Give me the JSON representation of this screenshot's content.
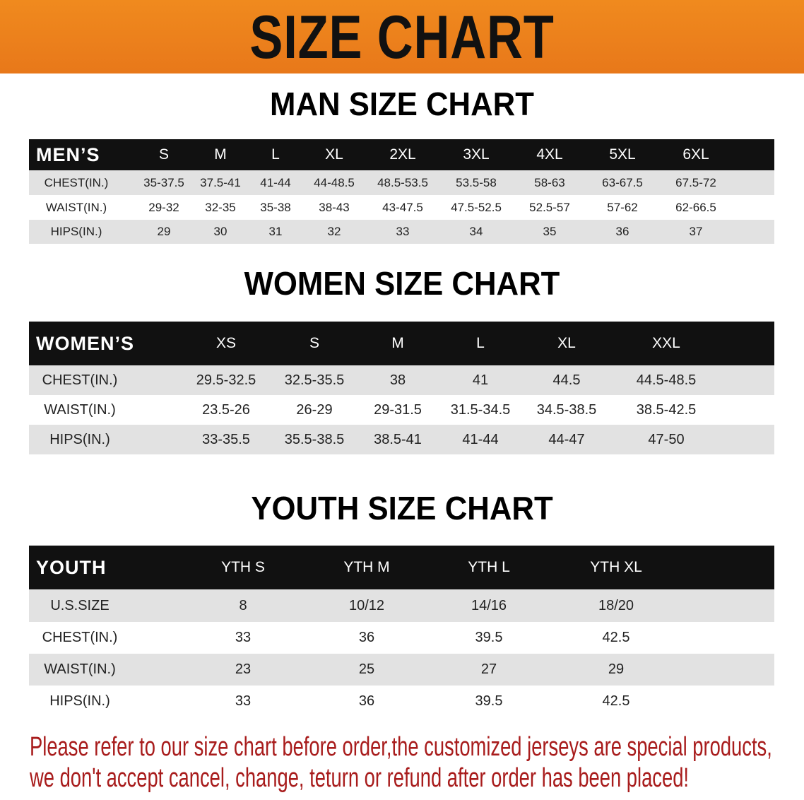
{
  "banner": {
    "title": "SIZE CHART",
    "color": "#ec811c"
  },
  "men": {
    "title": "MAN SIZE CHART",
    "header": [
      "MEN’S",
      "S",
      "M",
      "L",
      "XL",
      "2XL",
      "3XL",
      "4XL",
      "5XL",
      "6XL"
    ],
    "rows": [
      [
        "CHEST(IN.)",
        "35-37.5",
        "37.5-41",
        "41-44",
        "44-48.5",
        "48.5-53.5",
        "53.5-58",
        "58-63",
        "63-67.5",
        "67.5-72"
      ],
      [
        "WAIST(IN.)",
        "29-32",
        "32-35",
        "35-38",
        "38-43",
        "43-47.5",
        "47.5-52.5",
        "52.5-57",
        "57-62",
        "62-66.5"
      ],
      [
        "HIPS(IN.)",
        "29",
        "30",
        "31",
        "32",
        "33",
        "34",
        "35",
        "36",
        "37"
      ]
    ]
  },
  "women": {
    "title": "WOMEN SIZE CHART",
    "header": [
      "WOMEN’S",
      "XS",
      "S",
      "M",
      "L",
      "XL",
      "XXL"
    ],
    "rows": [
      [
        "CHEST(IN.)",
        "29.5-32.5",
        "32.5-35.5",
        "38",
        "41",
        "44.5",
        "44.5-48.5"
      ],
      [
        "WAIST(IN.)",
        "23.5-26",
        "26-29",
        "29-31.5",
        "31.5-34.5",
        "34.5-38.5",
        "38.5-42.5"
      ],
      [
        "HIPS(IN.)",
        "33-35.5",
        "35.5-38.5",
        "38.5-41",
        "41-44",
        "44-47",
        "47-50"
      ]
    ]
  },
  "youth": {
    "title": "YOUTH SIZE CHART",
    "header": [
      "YOUTH",
      "YTH S",
      "YTH M",
      "YTH L",
      "YTH XL"
    ],
    "rows": [
      [
        "U.S.SIZE",
        "8",
        "10/12",
        "14/16",
        "18/20"
      ],
      [
        "CHEST(IN.)",
        "33",
        "36",
        "39.5",
        "42.5"
      ],
      [
        "WAIST(IN.)",
        "23",
        "25",
        "27",
        "29"
      ],
      [
        "HIPS(IN.)",
        "33",
        "36",
        "39.5",
        "42.5"
      ]
    ]
  },
  "note": {
    "line1": "Please refer to our size chart before order,the customized jerseys are special products,",
    "line2": "we don't accept cancel, change, teturn or refund after order has been placed!",
    "color": "#a81c1c"
  }
}
